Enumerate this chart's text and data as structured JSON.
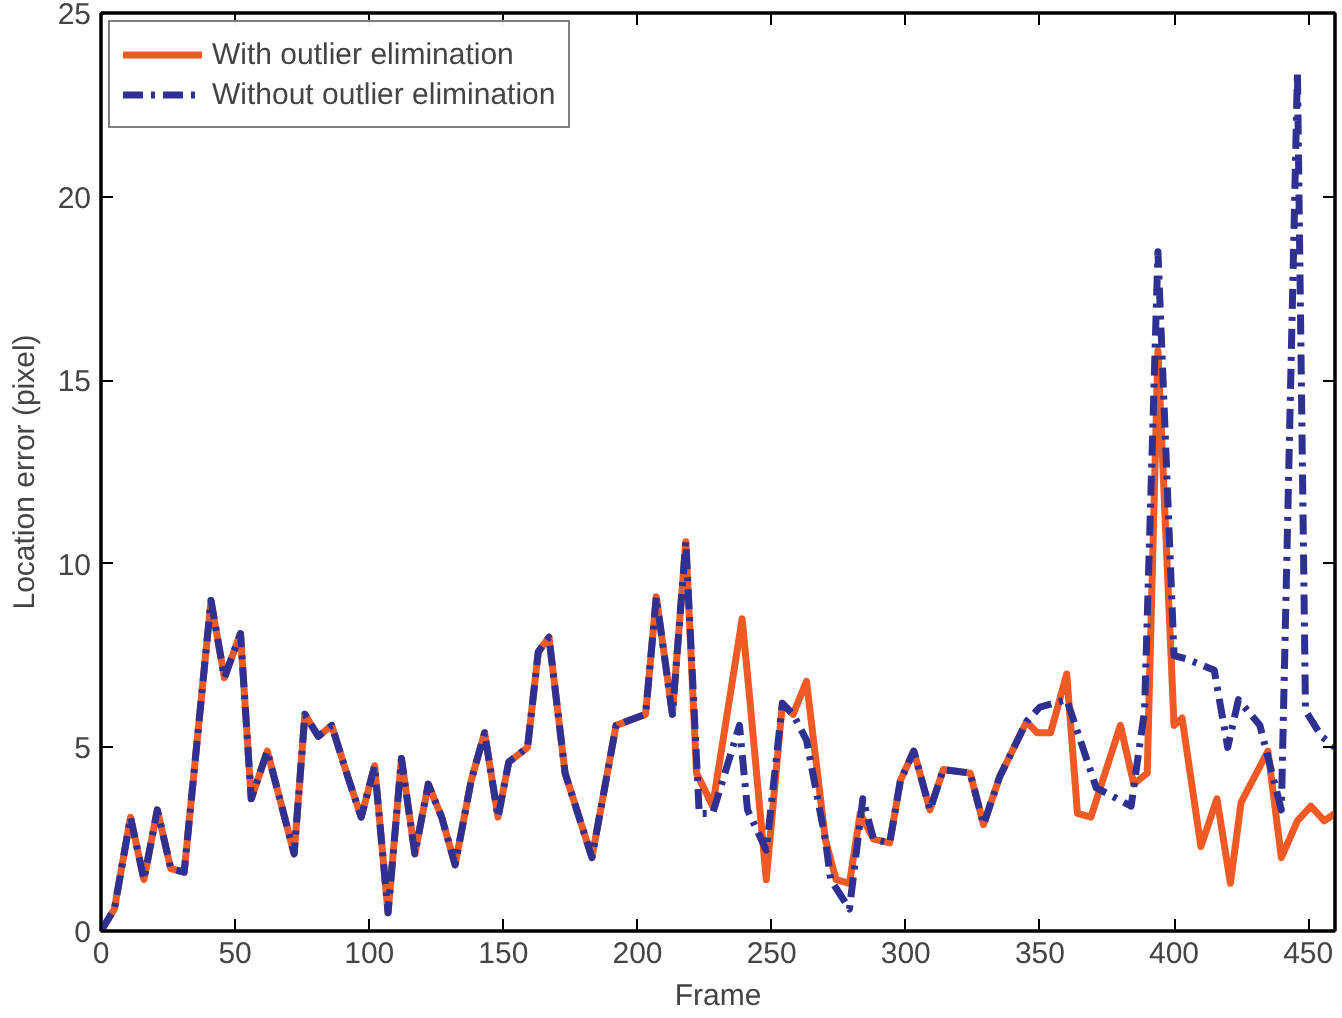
{
  "chart_data": {
    "type": "line",
    "xlabel": "Frame",
    "ylabel": "Location error (pixel)",
    "xlim": [
      0,
      460
    ],
    "xticks": [
      0,
      50,
      100,
      150,
      200,
      250,
      300,
      350,
      400,
      450
    ],
    "ylim": [
      0,
      25
    ],
    "yticks": [
      0,
      5,
      10,
      15,
      20,
      25
    ],
    "grid": false,
    "legend": "top left",
    "marker": "none",
    "series": [
      {
        "name": "With outlier elimination",
        "color": "#f15a24",
        "line_style": "solid",
        "x": [
          0,
          5,
          11,
          16,
          21,
          26,
          31,
          41,
          46,
          52,
          56,
          62,
          72,
          76,
          81,
          86,
          92,
          97,
          102,
          107,
          112,
          117,
          122,
          127,
          132,
          138,
          143,
          148,
          152,
          159,
          163,
          167,
          173,
          183,
          192,
          203,
          207,
          213,
          218,
          222,
          228,
          239,
          242,
          248,
          254,
          258,
          263,
          270,
          274,
          279,
          283,
          288,
          294,
          298,
          303,
          309,
          314,
          324,
          329,
          335,
          345,
          349,
          354,
          360,
          364,
          369,
          380,
          385,
          390,
          394,
          400,
          403,
          410,
          416,
          421,
          425,
          435,
          440,
          446,
          451,
          456,
          460
        ],
        "values": [
          0,
          0.6,
          3.1,
          1.4,
          3.3,
          1.7,
          1.6,
          9.0,
          6.9,
          8.1,
          3.6,
          4.9,
          2.1,
          5.9,
          5.3,
          5.6,
          4.2,
          3.1,
          4.5,
          0.5,
          4.7,
          2.1,
          4.0,
          3.1,
          1.8,
          4.1,
          5.4,
          3.1,
          4.6,
          5.0,
          7.6,
          8.0,
          4.3,
          2.0,
          5.6,
          5.9,
          9.1,
          5.9,
          10.6,
          4.3,
          3.4,
          8.5,
          6.2,
          1.4,
          6.2,
          5.9,
          6.8,
          2.5,
          1.4,
          1.3,
          3.2,
          2.5,
          2.4,
          4.1,
          4.9,
          3.3,
          4.4,
          4.3,
          2.9,
          4.2,
          5.7,
          5.4,
          5.4,
          7.0,
          3.2,
          3.1,
          5.6,
          4.0,
          4.3,
          15.8,
          5.6,
          5.8,
          2.3,
          3.6,
          1.3,
          3.5,
          4.9,
          2.0,
          3.0,
          3.4,
          3.0,
          3.2
        ]
      },
      {
        "name": "Without outlier elimination",
        "color": "#2e3192",
        "line_style": "dashed",
        "x": [
          0,
          5,
          11,
          16,
          21,
          26,
          31,
          41,
          46,
          52,
          56,
          62,
          72,
          76,
          81,
          86,
          92,
          97,
          102,
          107,
          112,
          117,
          122,
          127,
          132,
          138,
          143,
          148,
          152,
          159,
          163,
          167,
          173,
          183,
          192,
          203,
          207,
          213,
          218,
          223,
          228,
          238,
          241,
          248,
          254,
          258,
          263,
          270,
          272,
          279,
          284,
          288,
          294,
          298,
          303,
          309,
          314,
          324,
          329,
          335,
          345,
          350,
          360,
          371,
          384,
          389,
          394,
          400,
          405,
          415,
          420,
          424,
          432,
          440,
          446,
          449,
          455,
          460
        ],
        "values": [
          0,
          0.6,
          3.1,
          1.4,
          3.3,
          1.7,
          1.6,
          9.0,
          6.9,
          8.1,
          3.6,
          4.9,
          2.1,
          5.9,
          5.3,
          5.6,
          4.2,
          3.1,
          4.5,
          0.5,
          4.7,
          2.1,
          4.0,
          3.1,
          1.8,
          4.1,
          5.4,
          3.1,
          4.6,
          5.0,
          7.6,
          8.0,
          4.3,
          2.0,
          5.6,
          5.9,
          9.1,
          5.9,
          10.6,
          3.2,
          3.2,
          5.6,
          3.3,
          2.2,
          6.2,
          5.9,
          5.2,
          2.5,
          1.4,
          0.6,
          3.6,
          2.5,
          2.4,
          4.1,
          4.9,
          3.3,
          4.4,
          4.3,
          2.9,
          4.2,
          5.7,
          6.1,
          6.3,
          3.9,
          3.4,
          6.0,
          18.5,
          7.5,
          7.4,
          7.1,
          5.0,
          6.3,
          5.6,
          3.3,
          23.4,
          6.0,
          5.3,
          5.0
        ]
      }
    ]
  }
}
